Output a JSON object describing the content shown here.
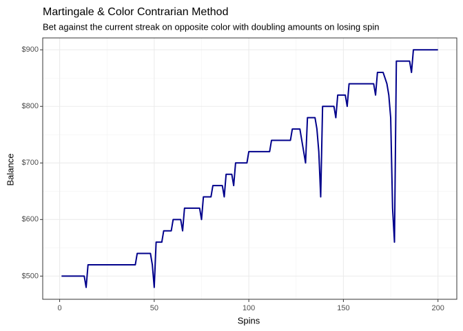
{
  "chart_data": {
    "type": "line",
    "title": "Martingale & Color Contrarian Method",
    "subtitle": "Bet against the current streak on opposite color with doubling amounts on losing spin",
    "x_label": "Spins",
    "y_label": "Balance",
    "series": [
      {
        "name": "Balance",
        "color": "#00008b",
        "x": [
          1,
          13,
          14,
          15,
          40,
          41,
          48,
          49,
          50,
          51,
          54,
          55,
          59,
          60,
          64,
          65,
          66,
          74,
          75,
          76,
          80,
          81,
          86,
          87,
          88,
          91,
          92,
          93,
          99,
          100,
          111,
          112,
          122,
          123,
          127,
          128,
          129,
          130,
          131,
          135,
          136,
          137,
          138,
          139,
          145,
          146,
          147,
          151,
          152,
          153,
          166,
          167,
          168,
          171,
          172,
          173,
          174,
          175,
          176,
          177,
          178,
          185,
          186,
          187,
          200
        ],
        "values": [
          500,
          500,
          480,
          520,
          520,
          540,
          540,
          520,
          480,
          560,
          560,
          580,
          580,
          600,
          600,
          580,
          620,
          620,
          600,
          640,
          640,
          660,
          660,
          640,
          680,
          680,
          660,
          700,
          700,
          720,
          720,
          740,
          740,
          760,
          760,
          740,
          720,
          700,
          780,
          780,
          760,
          720,
          640,
          800,
          800,
          780,
          820,
          820,
          800,
          840,
          840,
          820,
          860,
          860,
          850,
          840,
          820,
          780,
          620,
          560,
          880,
          880,
          860,
          900,
          900
        ]
      }
    ],
    "xlim": [
      -8.95,
      209.95
    ],
    "ylim": [
      459,
      921
    ],
    "xticks": [
      0,
      50,
      100,
      150,
      200
    ],
    "yticks": [
      {
        "value": 500,
        "label": "$500"
      },
      {
        "value": 600,
        "label": "$600"
      },
      {
        "value": 700,
        "label": "$700"
      },
      {
        "value": 800,
        "label": "$800"
      },
      {
        "value": 900,
        "label": "$900"
      }
    ],
    "xminor": [
      25,
      75,
      125,
      175
    ],
    "yminor": [
      550,
      650,
      750,
      850
    ],
    "grid": true
  }
}
